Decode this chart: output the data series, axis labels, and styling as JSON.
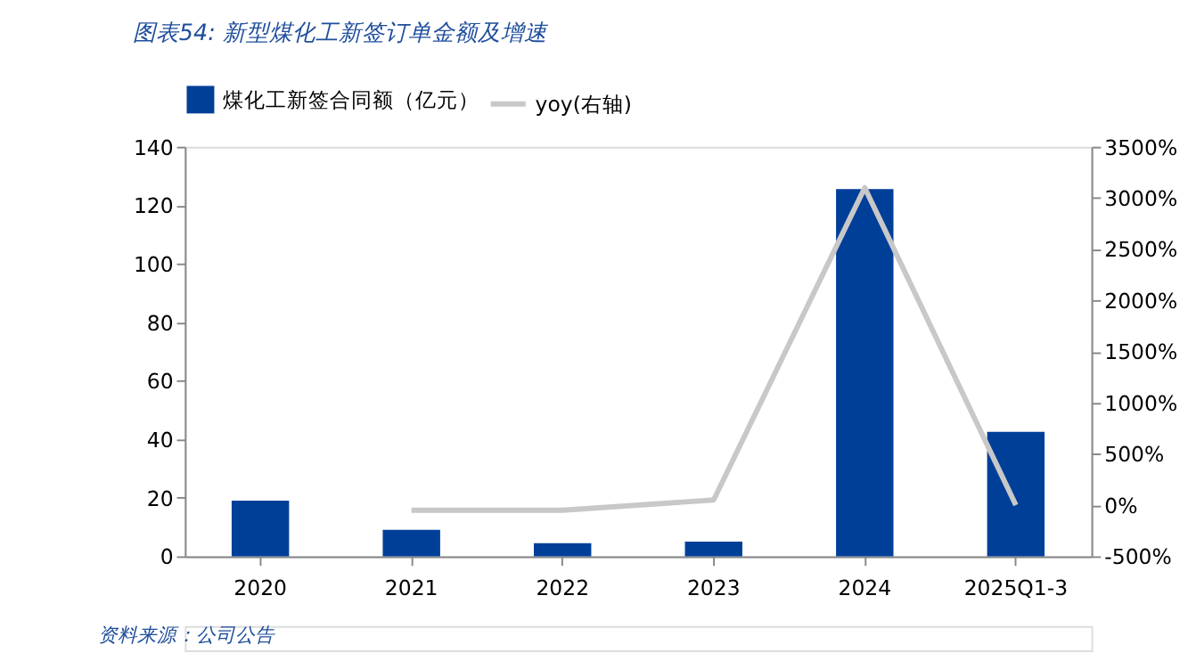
{
  "chart_data": {
    "type": "bar",
    "title": "图表54: 新型煤化工新签订单金额及增速",
    "categories": [
      "2020",
      "2021",
      "2022",
      "2023",
      "2024",
      "2025Q1-3"
    ],
    "series": [
      {
        "name": "煤化工新签合同额（亿元）",
        "color": "#003f98",
        "values": [
          19,
          9,
          4.5,
          5,
          125.5,
          42.5
        ]
      },
      {
        "name": "yoy(右轴)",
        "type": "line",
        "axis": "y2",
        "color": "#c8c8c8",
        "values": [
          null,
          -50,
          -50,
          50,
          3100,
          0
        ]
      }
    ],
    "ylim": [
      0,
      140
    ],
    "yticks": [
      0,
      20,
      40,
      60,
      80,
      100,
      120,
      140
    ],
    "y2lim": [
      -500,
      3500
    ],
    "y2ticks": [
      {
        "value": -500,
        "label": "-500%"
      },
      {
        "value": 0,
        "label": "0%"
      },
      {
        "value": 500,
        "label": "500%"
      },
      {
        "value": 1000,
        "label": "1000%"
      },
      {
        "value": 1500,
        "label": "1500%"
      },
      {
        "value": 2000,
        "label": "2000%"
      },
      {
        "value": 2500,
        "label": "2500%"
      },
      {
        "value": 3000,
        "label": "3000%"
      },
      {
        "value": 3500,
        "label": "3500%"
      }
    ],
    "grid": false,
    "legend": "top",
    "marker": "none",
    "line_style": "solid",
    "annotations": [
      "资料来源：公司公告"
    ]
  }
}
